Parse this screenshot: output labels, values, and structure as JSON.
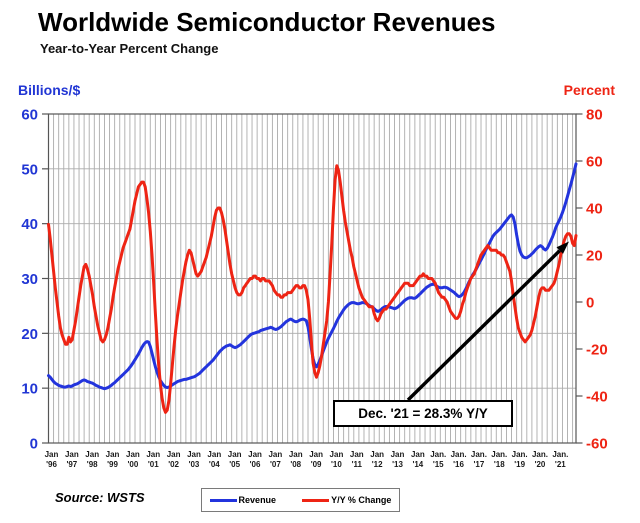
{
  "source_label": "Source: WSTS",
  "chart_data": {
    "type": "line",
    "title": "Worldwide Semiconductor Revenues",
    "subtitle": "Year-to-Year Percent Change",
    "x": {
      "start": "Jan 1996",
      "end": "Dec 2021",
      "points_per_year": 12,
      "tick_labels": [
        [
          "Jan",
          "'96"
        ],
        [
          "Jan",
          "'97"
        ],
        [
          "Jan",
          "'98"
        ],
        [
          "Jan",
          "'99"
        ],
        [
          "Jan",
          "'00"
        ],
        [
          "Jan",
          "'01"
        ],
        [
          "Jan",
          "'02"
        ],
        [
          "Jan",
          "'03"
        ],
        [
          "Jan",
          "'04"
        ],
        [
          "Jan",
          "'05"
        ],
        [
          "Jan",
          "'06"
        ],
        [
          "Jan",
          "'07"
        ],
        [
          "Jan",
          "'08"
        ],
        [
          "Jan",
          "'09"
        ],
        [
          "Jan",
          "'10"
        ],
        [
          "Jan",
          "'11"
        ],
        [
          "Jan",
          "'12"
        ],
        [
          "Jan",
          "'13"
        ],
        [
          "Jan",
          "'14"
        ],
        [
          "Jan.",
          "'15"
        ],
        [
          "Jan.",
          "'16"
        ],
        [
          "Jan.",
          "'17"
        ],
        [
          "Jan.",
          "'18"
        ],
        [
          "Jan.",
          "'19"
        ],
        [
          "Jan.",
          "'20"
        ],
        [
          "Jan.",
          "'21"
        ]
      ]
    },
    "left_axis": {
      "label": "Billions/$",
      "min": 0,
      "max": 60,
      "ticks": [
        60,
        50,
        40,
        30,
        20,
        10,
        0
      ],
      "color": "#2136d4"
    },
    "right_axis": {
      "label": "Percent",
      "min": -60,
      "max": 80,
      "ticks": [
        80,
        60,
        40,
        20,
        0,
        -20,
        -40,
        -60
      ],
      "color": "#ee2414"
    },
    "grid": {
      "vertical_every_months": 3,
      "horizontal_at_left_ticks": true,
      "color": "#ababab"
    },
    "legend_position": "bottom-center",
    "series": [
      {
        "name": "Revenue",
        "axis": "left",
        "color": "#2334dd",
        "values": [
          12.3,
          12.0,
          11.6,
          11.2,
          10.9,
          10.7,
          10.5,
          10.4,
          10.3,
          10.2,
          10.2,
          10.3,
          10.4,
          10.3,
          10.4,
          10.6,
          10.7,
          10.8,
          11.0,
          11.2,
          11.4,
          11.5,
          11.4,
          11.2,
          11.1,
          11.0,
          10.9,
          10.7,
          10.5,
          10.4,
          10.2,
          10.1,
          10.0,
          9.9,
          10.0,
          10.1,
          10.3,
          10.5,
          10.8,
          11.0,
          11.3,
          11.6,
          11.9,
          12.2,
          12.5,
          12.8,
          13.1,
          13.4,
          13.8,
          14.2,
          14.7,
          15.2,
          15.7,
          16.2,
          16.8,
          17.4,
          17.9,
          18.3,
          18.5,
          18.4,
          17.6,
          16.4,
          15.1,
          13.9,
          12.9,
          12.1,
          11.4,
          10.9,
          10.5,
          10.2,
          10.1,
          10.2,
          10.4,
          10.6,
          10.8,
          11.0,
          11.2,
          11.3,
          11.4,
          11.5,
          11.6,
          11.6,
          11.7,
          11.8,
          11.9,
          12.0,
          12.1,
          12.3,
          12.5,
          12.7,
          13.0,
          13.3,
          13.6,
          13.9,
          14.2,
          14.5,
          14.8,
          15.1,
          15.5,
          15.9,
          16.3,
          16.7,
          17.0,
          17.3,
          17.5,
          17.7,
          17.8,
          17.9,
          17.7,
          17.5,
          17.4,
          17.5,
          17.7,
          17.9,
          18.2,
          18.5,
          18.8,
          19.1,
          19.4,
          19.7,
          19.9,
          20.0,
          20.1,
          20.2,
          20.3,
          20.5,
          20.6,
          20.7,
          20.8,
          20.9,
          21.0,
          21.1,
          21.0,
          20.8,
          20.7,
          20.8,
          21.0,
          21.2,
          21.5,
          21.8,
          22.1,
          22.3,
          22.5,
          22.6,
          22.4,
          22.2,
          22.1,
          22.2,
          22.4,
          22.5,
          22.6,
          22.5,
          22.3,
          21.2,
          19.3,
          17.2,
          15.4,
          14.3,
          13.9,
          14.4,
          15.1,
          15.9,
          16.8,
          17.6,
          18.4,
          19.1,
          19.7,
          20.3,
          20.9,
          21.5,
          22.2,
          22.8,
          23.3,
          23.8,
          24.3,
          24.7,
          25.0,
          25.3,
          25.5,
          25.6,
          25.6,
          25.5,
          25.4,
          25.4,
          25.5,
          25.6,
          25.6,
          25.5,
          25.3,
          25.1,
          24.9,
          24.8,
          24.5,
          24.2,
          24.0,
          24.1,
          24.3,
          24.6,
          24.8,
          24.9,
          24.9,
          24.8,
          24.7,
          24.6,
          24.5,
          24.6,
          24.8,
          25.1,
          25.4,
          25.7,
          26.0,
          26.2,
          26.4,
          26.5,
          26.5,
          26.4,
          26.4,
          26.6,
          26.9,
          27.2,
          27.5,
          27.8,
          28.1,
          28.4,
          28.6,
          28.8,
          28.9,
          29.0,
          28.8,
          28.6,
          28.4,
          28.3,
          28.3,
          28.4,
          28.4,
          28.3,
          28.1,
          27.9,
          27.7,
          27.5,
          27.2,
          26.9,
          26.7,
          26.8,
          27.1,
          27.5,
          28.1,
          28.7,
          29.4,
          30.0,
          30.6,
          31.1,
          31.6,
          32.2,
          32.8,
          33.4,
          34.0,
          34.6,
          35.3,
          35.9,
          36.5,
          37.1,
          37.7,
          38.1,
          38.4,
          38.7,
          39.0,
          39.4,
          39.8,
          40.2,
          40.6,
          41.0,
          41.4,
          41.6,
          41.2,
          40.0,
          38.0,
          36.3,
          35.0,
          34.3,
          33.9,
          33.8,
          33.8,
          34.0,
          34.2,
          34.5,
          34.8,
          35.2,
          35.5,
          35.8,
          36.0,
          35.8,
          35.4,
          35.2,
          35.5,
          36.1,
          36.8,
          37.5,
          38.3,
          39.2,
          39.9,
          40.5,
          41.2,
          42.0,
          42.9,
          43.9,
          45.0,
          46.1,
          47.2,
          48.4,
          49.6,
          50.9
        ]
      },
      {
        "name": "Y/Y % Change",
        "axis": "right",
        "color": "#ee2414",
        "values": [
          33,
          27,
          20,
          13,
          6,
          0,
          -6,
          -11,
          -14,
          -16,
          -18,
          -18,
          -15,
          -17,
          -16,
          -12,
          -8,
          -3,
          2,
          7,
          11,
          15,
          16,
          14,
          11,
          7,
          3,
          -2,
          -6,
          -10,
          -13,
          -16,
          -17,
          -16,
          -14,
          -11,
          -7,
          -3,
          2,
          6,
          10,
          14,
          17,
          20,
          23,
          25,
          27,
          29,
          31,
          35,
          39,
          43,
          46,
          49,
          50,
          51,
          51,
          49,
          44,
          38,
          30,
          20,
          8,
          -5,
          -17,
          -27,
          -35,
          -41,
          -45,
          -47,
          -46,
          -42,
          -35,
          -27,
          -19,
          -12,
          -6,
          -1,
          4,
          9,
          13,
          17,
          20,
          22,
          21,
          18,
          15,
          12,
          11,
          12,
          13,
          15,
          17,
          19,
          22,
          25,
          28,
          32,
          36,
          39,
          40,
          40,
          38,
          35,
          31,
          26,
          21,
          16,
          12,
          9,
          6,
          4,
          3,
          3,
          4,
          6,
          7,
          8,
          9,
          10,
          10,
          11,
          11,
          10,
          10,
          9,
          10,
          10,
          9,
          9,
          9,
          8,
          7,
          5,
          4,
          3,
          3,
          2,
          2,
          3,
          3,
          4,
          4,
          4,
          5,
          6,
          7,
          7,
          6,
          6,
          7,
          7,
          5,
          1,
          -7,
          -17,
          -26,
          -30,
          -32,
          -30,
          -27,
          -23,
          -18,
          -13,
          -8,
          0,
          12,
          25,
          40,
          52,
          58,
          56,
          51,
          45,
          39,
          34,
          30,
          26,
          22,
          19,
          15,
          12,
          9,
          6,
          4,
          2,
          1,
          0,
          -1,
          -2,
          -2,
          -2,
          -5,
          -7,
          -8,
          -7,
          -5,
          -4,
          -3,
          -3,
          -2,
          -1,
          0,
          1,
          2,
          3,
          4,
          5,
          6,
          7,
          8,
          8,
          8,
          7,
          7,
          7,
          8,
          9,
          10,
          11,
          11,
          12,
          11,
          11,
          10,
          10,
          10,
          9,
          8,
          6,
          4,
          3,
          2,
          2,
          1,
          0,
          -2,
          -4,
          -5,
          -6,
          -7,
          -7,
          -6,
          -4,
          -1,
          1,
          4,
          6,
          8,
          10,
          11,
          12,
          14,
          16,
          18,
          20,
          21,
          22,
          23,
          24,
          23,
          22,
          22,
          22,
          22,
          21,
          21,
          20,
          20,
          19,
          17,
          15,
          13,
          9,
          3,
          -2,
          -7,
          -11,
          -13,
          -15,
          -16,
          -17,
          -16,
          -15,
          -14,
          -12,
          -9,
          -6,
          -2,
          2,
          5,
          6,
          6,
          5,
          5,
          5,
          6,
          7,
          8,
          10,
          13,
          16,
          20,
          23,
          26,
          28,
          29,
          29,
          28,
          25,
          24,
          28.3
        ]
      }
    ],
    "annotation": {
      "text": "Dec. '21 = 28.3% Y/Y",
      "points_to": "last value of Y/Y % Change series"
    }
  }
}
